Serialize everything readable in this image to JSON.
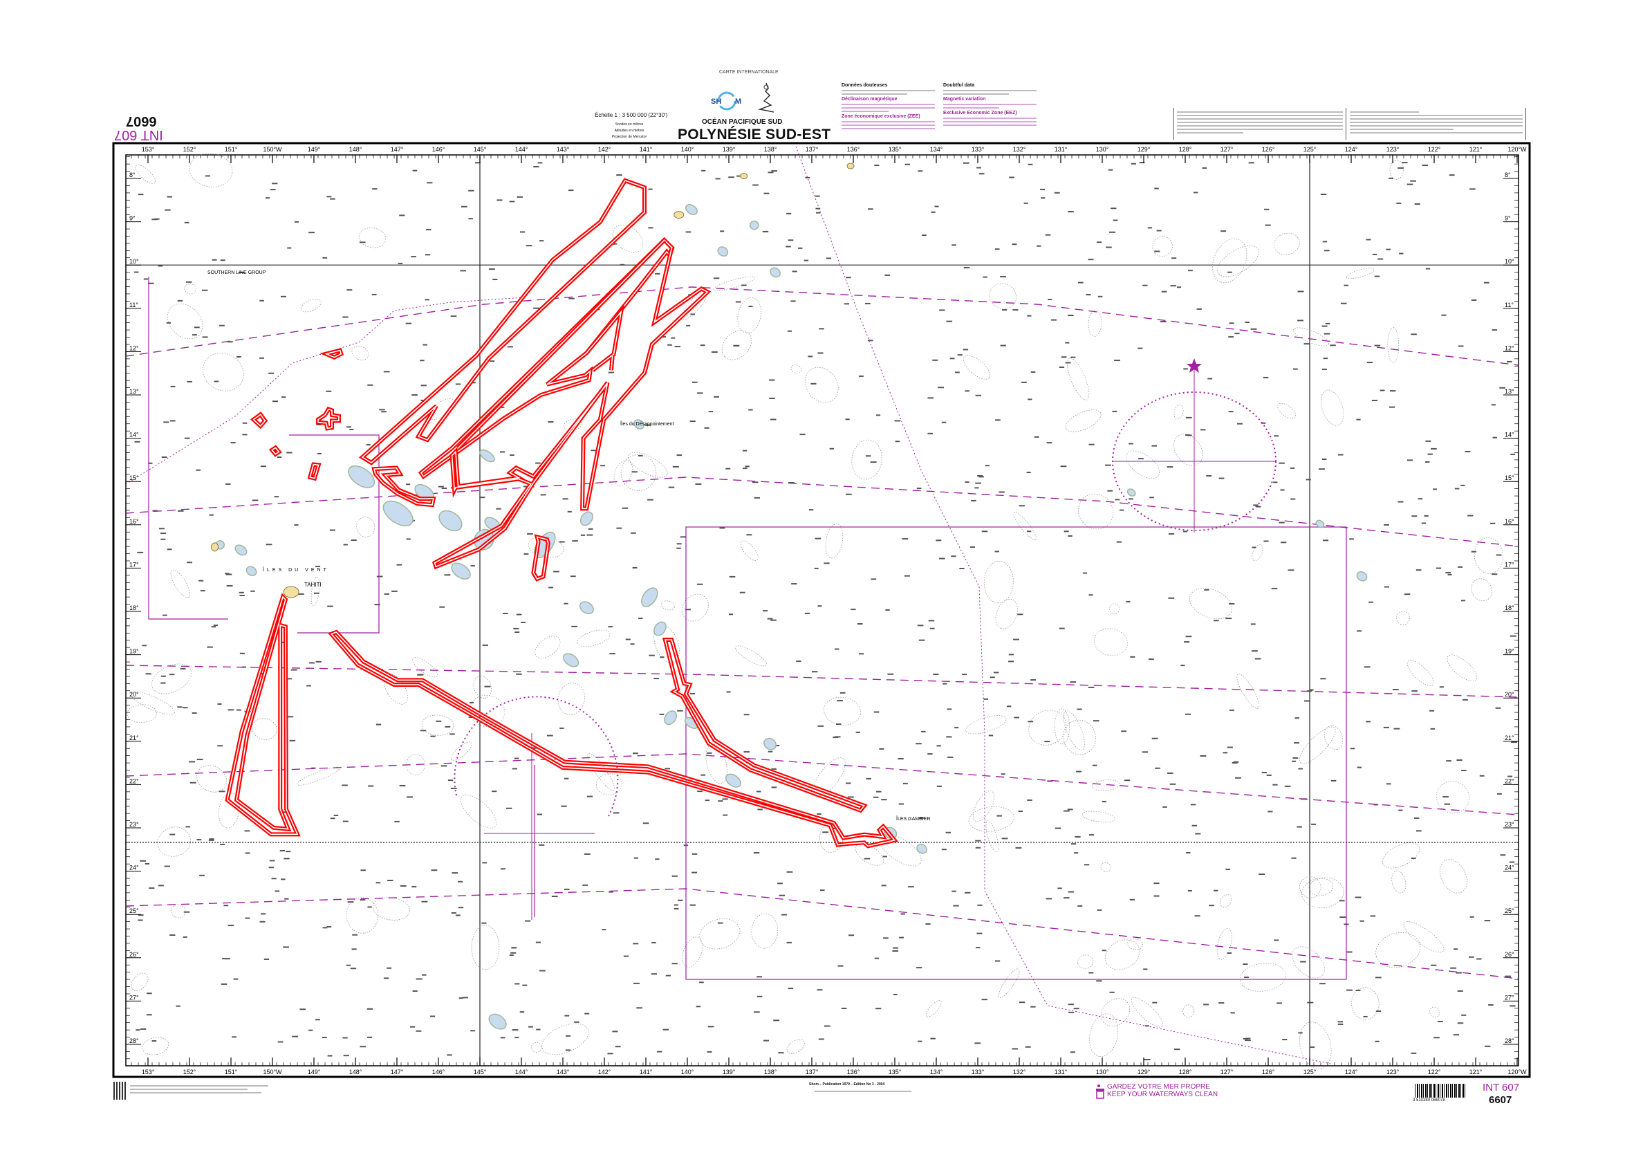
{
  "header": {
    "chart_kind": "CARTE INTERNATIONALE",
    "publisher_logo": "SHOM",
    "region": "OCÉAN PACIFIQUE SUD",
    "title": "POLYNÉSIE SUD-EST",
    "scale": "Échelle 1 : 3 500 000 (22°30')",
    "info_lines": [
      "Sondes en mètres",
      "Altitudes en mètres",
      "Projection de Mercator"
    ],
    "chart_number": "6607",
    "int_number": "INT 607"
  },
  "notes": {
    "left_col": [
      {
        "heading": "Données douteuses",
        "color": "#111111"
      },
      {
        "heading": "Déclinaison magnétique",
        "color": "#a020a0"
      },
      {
        "heading": "Zone économique exclusive (ZEE)",
        "color": "#a020a0"
      }
    ],
    "right_col": [
      {
        "heading": "Doubtful data",
        "color": "#111111"
      },
      {
        "heading": "Magnetic variation",
        "color": "#a020a0"
      },
      {
        "heading": "Exclusive Economic Zone (EEZ)",
        "color": "#a020a0"
      }
    ]
  },
  "graticule": {
    "longitudes": [
      "153°",
      "152°",
      "151°",
      "150°W",
      "149°",
      "148°",
      "147°",
      "146°",
      "145°",
      "144°",
      "143°",
      "142°",
      "141°",
      "140°",
      "139°",
      "138°",
      "137°",
      "136°",
      "135°",
      "134°",
      "133°",
      "132°",
      "131°",
      "130°",
      "129°",
      "128°",
      "127°",
      "126°",
      "125°",
      "124°",
      "123°",
      "122°",
      "121°",
      "120°W"
    ],
    "latitudes": [
      "8°",
      "9°",
      "10°",
      "11°",
      "12°",
      "13°",
      "14°",
      "15°",
      "16°",
      "17°",
      "18°",
      "19°",
      "20°",
      "21°",
      "22°",
      "23°",
      "24°",
      "25°",
      "26°",
      "27°",
      "28°"
    ]
  },
  "place_labels": {
    "southern_line": "SOUTHERN LINE GROUP",
    "tahiti": "TAHITI",
    "iles_du_vent": "ÎLES DU VENT",
    "desappointement": "Îles du Désappointement",
    "gambier": "ÎLES GAMBIER"
  },
  "footer": {
    "edition": "Shom – Publication 1979 – Édition No 3 - 2004",
    "environment_fr": "GARDEZ VOTRE MER PROPRE",
    "environment_en": "KEEP YOUR WATERWAYS CLEAN",
    "barcode_number": "3 510380 066078",
    "int_number": "INT 607",
    "chart_number": "6607"
  },
  "colors": {
    "annotation_red": "#ff0000",
    "chart_magenta": "#a020a0",
    "shallow_water": "#c9dcef",
    "land": "#f3dfa3"
  }
}
